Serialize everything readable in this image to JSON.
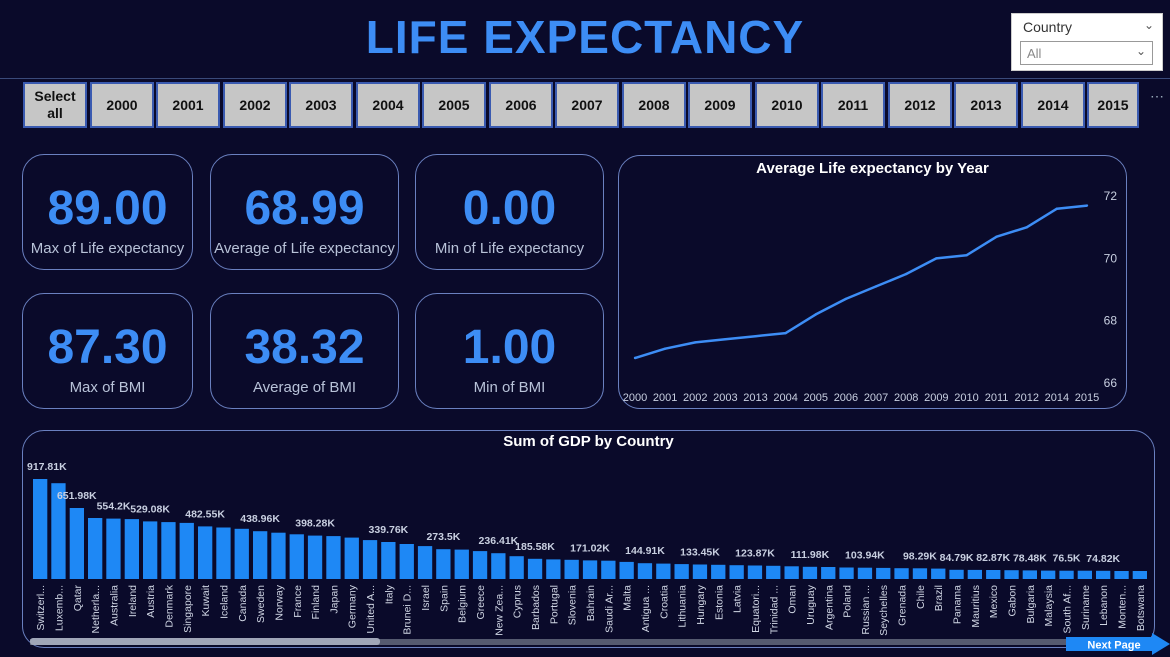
{
  "header": {
    "title": "LIFE EXPECTANCY"
  },
  "slicer": {
    "label": "Country",
    "value": "All"
  },
  "years": [
    "Select all",
    "2000",
    "2001",
    "2002",
    "2003",
    "2004",
    "2005",
    "2006",
    "2007",
    "2008",
    "2009",
    "2010",
    "2011",
    "2012",
    "2013",
    "2014",
    "2015"
  ],
  "kpis": [
    {
      "value": "89.00",
      "label": "Max of Life expectancy"
    },
    {
      "value": "68.99",
      "label": "Average of Life expectancy"
    },
    {
      "value": "0.00",
      "label": "Min of Life expectancy"
    },
    {
      "value": "87.30",
      "label": "Max of  BMI"
    },
    {
      "value": "38.32",
      "label": "Average of  BMI"
    },
    {
      "value": "1.00",
      "label": "Min of  BMI"
    }
  ],
  "next_page": "Next Page",
  "chart_data": [
    {
      "type": "line",
      "title": "Average Life expectancy by Year",
      "categories": [
        "2000",
        "2001",
        "2002",
        "2003",
        "2013",
        "2004",
        "2005",
        "2006",
        "2007",
        "2008",
        "2009",
        "2010",
        "2011",
        "2012",
        "2014",
        "2015"
      ],
      "values": [
        66.8,
        67.1,
        67.3,
        67.4,
        67.5,
        67.6,
        68.2,
        68.7,
        69.1,
        69.5,
        70.0,
        70.1,
        70.7,
        71.0,
        71.6,
        71.7
      ],
      "yticks": [
        66,
        68,
        70,
        72
      ],
      "ylim": [
        65.9,
        72.2
      ],
      "color": "#3d8df5"
    },
    {
      "type": "bar",
      "title": "Sum of GDP by Country",
      "categories": [
        "Switzerl...",
        "Luxemb...",
        "Qatar",
        "Netherla...",
        "Australia",
        "Ireland",
        "Austria",
        "Denmark",
        "Singapore",
        "Kuwait",
        "Iceland",
        "Canada",
        "Sweden",
        "Norway",
        "France",
        "Finland",
        "Japan",
        "Germany",
        "United A...",
        "Italy",
        "Brunei D...",
        "Israel",
        "Spain",
        "Belgium",
        "Greece",
        "New Zea...",
        "Cyprus",
        "Barbados",
        "Portugal",
        "Slovenia",
        "Bahrain",
        "Saudi Ar...",
        "Malta",
        "Antigua ...",
        "Croatia",
        "Lithuania",
        "Hungary",
        "Estonia",
        "Latvia",
        "Equatori...",
        "Trinidad ...",
        "Oman",
        "Uruguay",
        "Argentina",
        "Poland",
        "Russian ...",
        "Seychelles",
        "Grenada",
        "Chile",
        "Brazil",
        "Panama",
        "Mauritius",
        "Mexico",
        "Gabon",
        "Bulgaria",
        "Malaysia",
        "South Af...",
        "Suriname",
        "Lebanon",
        "Monten...",
        "Botswana"
      ],
      "values": [
        917.81,
        879,
        651.98,
        560,
        554.2,
        550,
        529.08,
        522,
        515,
        482.55,
        473,
        461,
        438.96,
        425,
        410,
        398.28,
        394,
        380,
        357,
        339.76,
        321,
        302,
        273.5,
        270,
        256,
        236.41,
        209,
        185.58,
        180,
        176,
        171.02,
        168,
        157,
        144.91,
        141,
        137,
        133.45,
        130,
        127,
        123.87,
        121,
        117,
        111.98,
        110,
        106,
        103.94,
        102,
        99,
        98.29,
        95,
        84.79,
        83.5,
        82.87,
        81,
        78.48,
        77.5,
        76.5,
        76,
        74.82,
        73.5,
        73
      ],
      "data_labels": {
        "0": "917.81K",
        "2": "651.98K",
        "4": "554.2K",
        "6": "529.08K",
        "9": "482.55K",
        "12": "438.96K",
        "15": "398.28K",
        "19": "339.76K",
        "22": "273.5K",
        "25": "236.41K",
        "27": "185.58K",
        "30": "171.02K",
        "33": "144.91K",
        "36": "133.45K",
        "39": "123.87K",
        "42": "111.98K",
        "45": "103.94K",
        "48": "98.29K",
        "50": "84.79K",
        "52": "82.87K",
        "54": "78.48K",
        "56": "76.5K",
        "58": "74.82K"
      },
      "ylim": [
        0,
        1000
      ],
      "color": "#1e88f5"
    }
  ]
}
